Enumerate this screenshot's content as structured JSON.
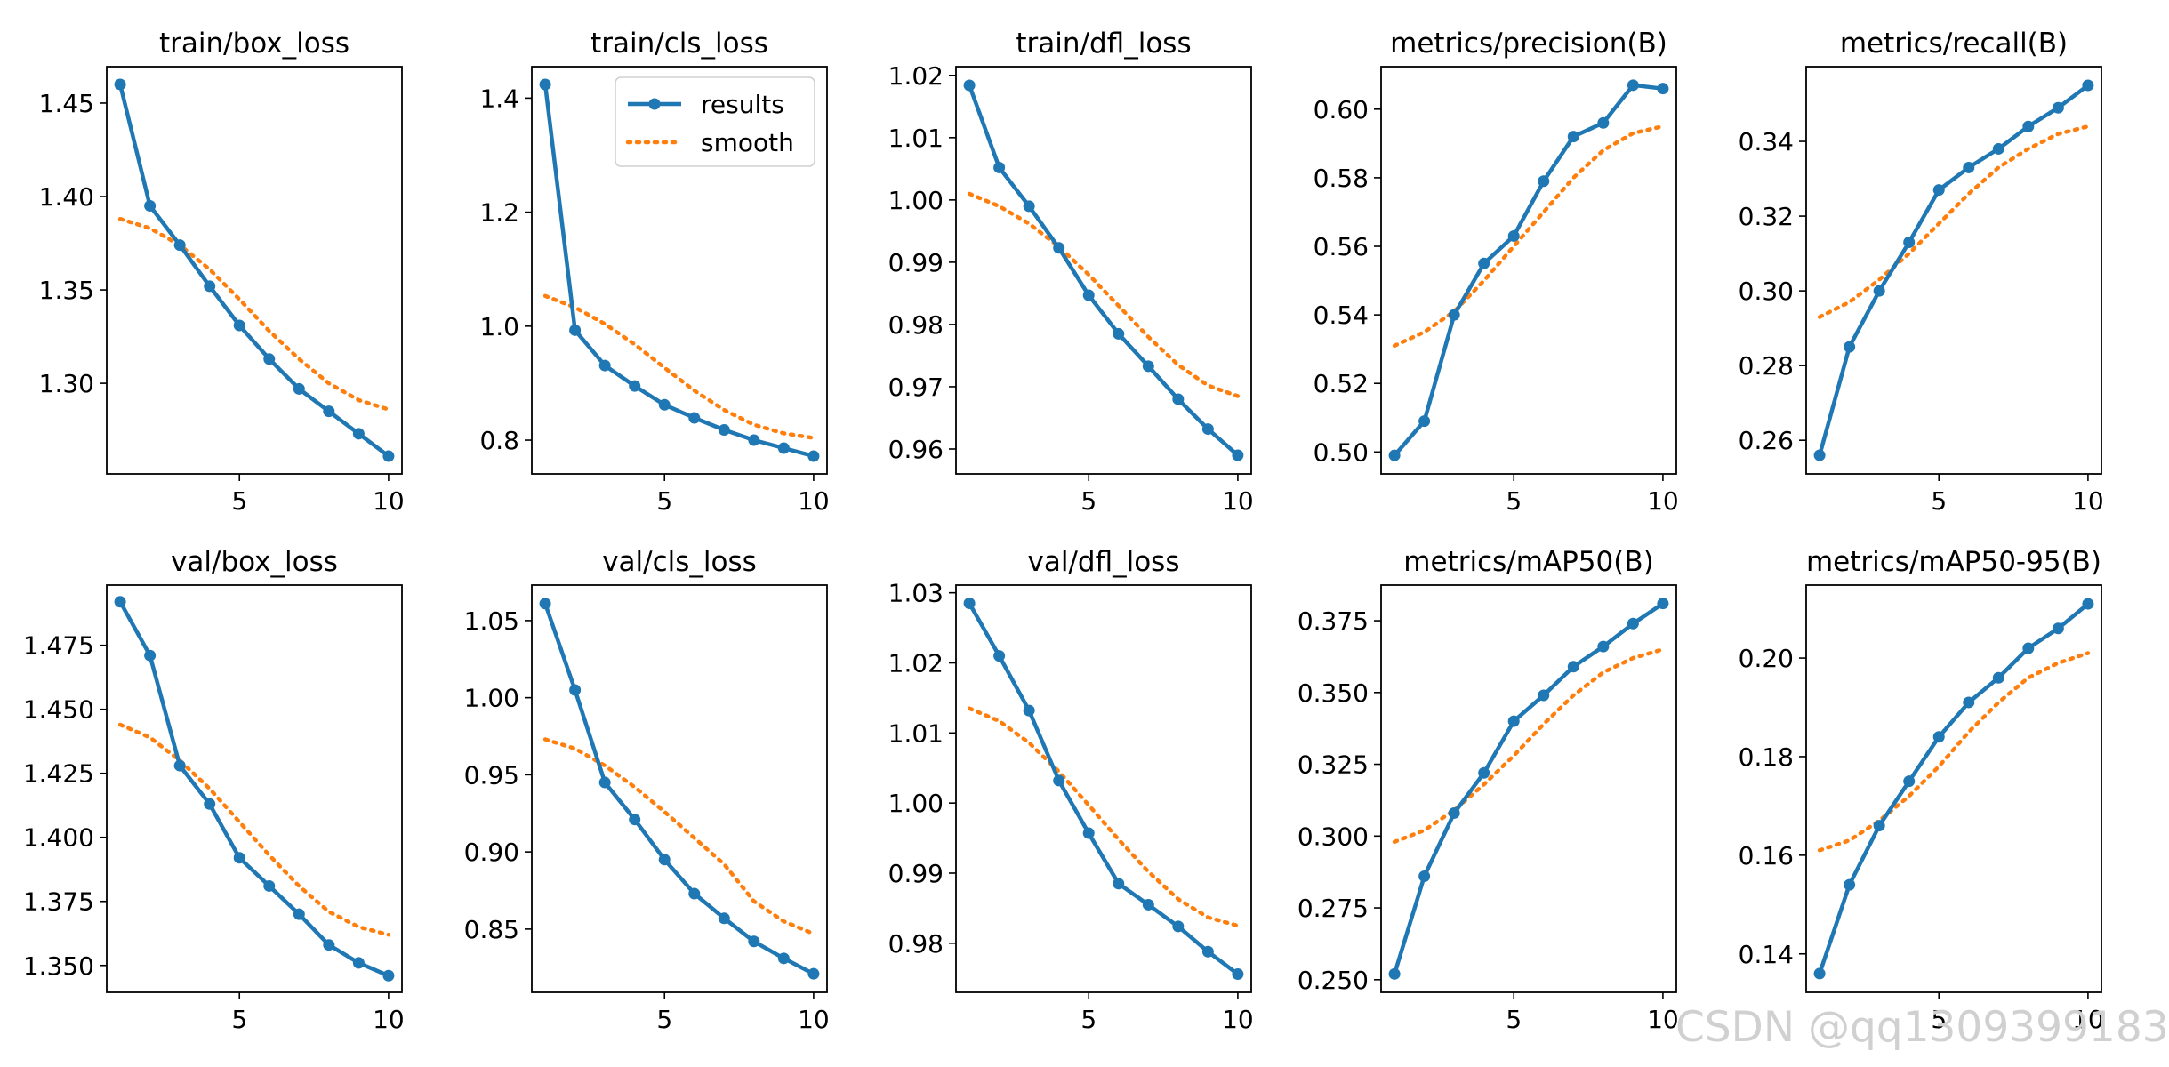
{
  "figure": {
    "legend": {
      "results_label": "results",
      "smooth_label": "smooth",
      "placement": "upper right of train/cls_loss panel"
    }
  },
  "colors": {
    "results": "#1f77b4",
    "smooth": "#ff7f0e",
    "watermark": "#d0d0d0"
  },
  "watermark": {
    "text": "CSDN @qq1309399183"
  },
  "chart_data": [
    {
      "type": "line",
      "title": "train/box_loss",
      "x": [
        1,
        2,
        3,
        4,
        5,
        6,
        7,
        8,
        9,
        10
      ],
      "series": [
        {
          "name": "results",
          "values": [
            1.46,
            1.395,
            1.374,
            1.352,
            1.331,
            1.313,
            1.297,
            1.285,
            1.273,
            1.261
          ]
        },
        {
          "name": "smooth",
          "values": [
            1.388,
            1.383,
            1.374,
            1.361,
            1.345,
            1.328,
            1.313,
            1.3,
            1.291,
            1.286
          ]
        }
      ],
      "xlim": [
        0.55,
        10.45
      ],
      "ylim": [
        1.2515,
        1.4695
      ],
      "xticks": [
        5,
        10
      ],
      "xtick_labels": [
        "5",
        "10"
      ],
      "yticks": [
        1.3,
        1.35,
        1.4,
        1.45
      ],
      "ytick_labels": [
        "1.30",
        "1.35",
        "1.40",
        "1.45"
      ]
    },
    {
      "type": "line",
      "title": "train/cls_loss",
      "x": [
        1,
        2,
        3,
        4,
        5,
        6,
        7,
        8,
        9,
        10
      ],
      "series": [
        {
          "name": "results",
          "values": [
            1.424,
            0.993,
            0.931,
            0.895,
            0.862,
            0.839,
            0.818,
            0.8,
            0.786,
            0.772
          ]
        },
        {
          "name": "smooth",
          "values": [
            1.053,
            1.033,
            1.004,
            0.968,
            0.927,
            0.887,
            0.853,
            0.827,
            0.812,
            0.804
          ]
        }
      ],
      "xlim": [
        0.55,
        10.45
      ],
      "ylim": [
        0.7408,
        1.4552
      ],
      "xticks": [
        5,
        10
      ],
      "xtick_labels": [
        "5",
        "10"
      ],
      "yticks": [
        0.8,
        1.0,
        1.2,
        1.4
      ],
      "ytick_labels": [
        "0.8",
        "1.0",
        "1.2",
        "1.4"
      ],
      "show_legend": true
    },
    {
      "type": "line",
      "title": "train/dfl_loss",
      "x": [
        1,
        2,
        3,
        4,
        5,
        6,
        7,
        8,
        9,
        10
      ],
      "series": [
        {
          "name": "results",
          "values": [
            1.0184,
            1.0052,
            0.999,
            0.9923,
            0.9847,
            0.9785,
            0.9733,
            0.968,
            0.9632,
            0.959
          ]
        },
        {
          "name": "smooth",
          "values": [
            1.001,
            0.999,
            0.9962,
            0.9925,
            0.988,
            0.983,
            0.978,
            0.9735,
            0.9702,
            0.9685
          ]
        }
      ],
      "xlim": [
        0.55,
        10.45
      ],
      "ylim": [
        0.956,
        1.0214
      ],
      "xticks": [
        5,
        10
      ],
      "xtick_labels": [
        "5",
        "10"
      ],
      "yticks": [
        0.96,
        0.97,
        0.98,
        0.99,
        1.0,
        1.01,
        1.02
      ],
      "ytick_labels": [
        "0.96",
        "0.97",
        "0.98",
        "0.99",
        "1.00",
        "1.01",
        "1.02"
      ]
    },
    {
      "type": "line",
      "title": "metrics/precision(B)",
      "x": [
        1,
        2,
        3,
        4,
        5,
        6,
        7,
        8,
        9,
        10
      ],
      "series": [
        {
          "name": "results",
          "values": [
            0.499,
            0.509,
            0.54,
            0.555,
            0.563,
            0.579,
            0.592,
            0.596,
            0.607,
            0.606
          ]
        },
        {
          "name": "smooth",
          "values": [
            0.531,
            0.535,
            0.541,
            0.55,
            0.56,
            0.57,
            0.58,
            0.588,
            0.593,
            0.595
          ]
        }
      ],
      "xlim": [
        0.55,
        10.45
      ],
      "ylim": [
        0.4936,
        0.6124
      ],
      "xticks": [
        5,
        10
      ],
      "xtick_labels": [
        "5",
        "10"
      ],
      "yticks": [
        0.5,
        0.52,
        0.54,
        0.56,
        0.58,
        0.6
      ],
      "ytick_labels": [
        "0.50",
        "0.52",
        "0.54",
        "0.56",
        "0.58",
        "0.60"
      ]
    },
    {
      "type": "line",
      "title": "metrics/recall(B)",
      "x": [
        1,
        2,
        3,
        4,
        5,
        6,
        7,
        8,
        9,
        10
      ],
      "series": [
        {
          "name": "results",
          "values": [
            0.256,
            0.285,
            0.3,
            0.313,
            0.327,
            0.333,
            0.338,
            0.344,
            0.349,
            0.355
          ]
        },
        {
          "name": "smooth",
          "values": [
            0.293,
            0.297,
            0.303,
            0.31,
            0.318,
            0.326,
            0.333,
            0.338,
            0.342,
            0.344
          ]
        }
      ],
      "xlim": [
        0.55,
        10.45
      ],
      "ylim": [
        0.251,
        0.36
      ],
      "xticks": [
        5,
        10
      ],
      "xtick_labels": [
        "5",
        "10"
      ],
      "yticks": [
        0.26,
        0.28,
        0.3,
        0.32,
        0.34
      ],
      "ytick_labels": [
        "0.26",
        "0.28",
        "0.30",
        "0.32",
        "0.34"
      ]
    },
    {
      "type": "line",
      "title": "val/box_loss",
      "x": [
        1,
        2,
        3,
        4,
        5,
        6,
        7,
        8,
        9,
        10
      ],
      "series": [
        {
          "name": "results",
          "values": [
            1.492,
            1.471,
            1.428,
            1.413,
            1.392,
            1.381,
            1.37,
            1.358,
            1.351,
            1.346
          ]
        },
        {
          "name": "smooth",
          "values": [
            1.444,
            1.439,
            1.43,
            1.419,
            1.406,
            1.393,
            1.381,
            1.371,
            1.365,
            1.362
          ]
        }
      ],
      "xlim": [
        0.55,
        10.45
      ],
      "ylim": [
        1.3395,
        1.4985
      ],
      "xticks": [
        5,
        10
      ],
      "xtick_labels": [
        "5",
        "10"
      ],
      "yticks": [
        1.35,
        1.375,
        1.4,
        1.425,
        1.45,
        1.475
      ],
      "ytick_labels": [
        "1.350",
        "1.375",
        "1.400",
        "1.425",
        "1.450",
        "1.475"
      ]
    },
    {
      "type": "line",
      "title": "val/cls_loss",
      "x": [
        1,
        2,
        3,
        4,
        5,
        6,
        7,
        8,
        9,
        10
      ],
      "series": [
        {
          "name": "results",
          "values": [
            1.061,
            1.005,
            0.945,
            0.921,
            0.895,
            0.873,
            0.857,
            0.842,
            0.831,
            0.821
          ]
        },
        {
          "name": "smooth",
          "values": [
            0.973,
            0.967,
            0.956,
            0.942,
            0.926,
            0.909,
            0.892,
            0.868,
            0.855,
            0.847
          ]
        }
      ],
      "xlim": [
        0.55,
        10.45
      ],
      "ylim": [
        0.809,
        1.073
      ],
      "xticks": [
        5,
        10
      ],
      "xtick_labels": [
        "5",
        "10"
      ],
      "yticks": [
        0.85,
        0.9,
        0.95,
        1.0,
        1.05
      ],
      "ytick_labels": [
        "0.85",
        "0.90",
        "0.95",
        "1.00",
        "1.05"
      ]
    },
    {
      "type": "line",
      "title": "val/dfl_loss",
      "x": [
        1,
        2,
        3,
        4,
        5,
        6,
        7,
        8,
        9,
        10
      ],
      "series": [
        {
          "name": "results",
          "values": [
            1.0285,
            1.021,
            1.0132,
            1.0032,
            0.9957,
            0.9885,
            0.9855,
            0.9824,
            0.9788,
            0.9756
          ]
        },
        {
          "name": "smooth",
          "values": [
            1.0135,
            1.0117,
            1.0086,
            1.0045,
            0.9997,
            0.9948,
            0.9902,
            0.9863,
            0.9837,
            0.9825
          ]
        }
      ],
      "xlim": [
        0.55,
        10.45
      ],
      "ylim": [
        0.973,
        1.0311
      ],
      "xticks": [
        5,
        10
      ],
      "xtick_labels": [
        "5",
        "10"
      ],
      "yticks": [
        0.98,
        0.99,
        1.0,
        1.01,
        1.02,
        1.03
      ],
      "ytick_labels": [
        "0.98",
        "0.99",
        "1.00",
        "1.01",
        "1.02",
        "1.03"
      ]
    },
    {
      "type": "line",
      "title": "metrics/mAP50(B)",
      "x": [
        1,
        2,
        3,
        4,
        5,
        6,
        7,
        8,
        9,
        10
      ],
      "series": [
        {
          "name": "results",
          "values": [
            0.252,
            0.286,
            0.308,
            0.322,
            0.34,
            0.349,
            0.359,
            0.366,
            0.374,
            0.381
          ]
        },
        {
          "name": "smooth",
          "values": [
            0.298,
            0.302,
            0.309,
            0.318,
            0.328,
            0.339,
            0.349,
            0.357,
            0.362,
            0.365
          ]
        }
      ],
      "xlim": [
        0.55,
        10.45
      ],
      "ylim": [
        0.2456,
        0.3874
      ],
      "xticks": [
        5,
        10
      ],
      "xtick_labels": [
        "5",
        "10"
      ],
      "yticks": [
        0.25,
        0.275,
        0.3,
        0.325,
        0.35,
        0.375
      ],
      "ytick_labels": [
        "0.250",
        "0.275",
        "0.300",
        "0.325",
        "0.350",
        "0.375"
      ]
    },
    {
      "type": "line",
      "title": "metrics/mAP50-95(B)",
      "x": [
        1,
        2,
        3,
        4,
        5,
        6,
        7,
        8,
        9,
        10
      ],
      "series": [
        {
          "name": "results",
          "values": [
            0.136,
            0.154,
            0.166,
            0.175,
            0.184,
            0.191,
            0.196,
            0.202,
            0.206,
            0.211
          ]
        },
        {
          "name": "smooth",
          "values": [
            0.161,
            0.163,
            0.167,
            0.172,
            0.178,
            0.185,
            0.191,
            0.196,
            0.199,
            0.201
          ]
        }
      ],
      "xlim": [
        0.55,
        10.45
      ],
      "ylim": [
        0.1322,
        0.2148
      ],
      "xticks": [
        5,
        10
      ],
      "xtick_labels": [
        "5",
        "10"
      ],
      "yticks": [
        0.14,
        0.16,
        0.18,
        0.2
      ],
      "ytick_labels": [
        "0.14",
        "0.16",
        "0.18",
        "0.20"
      ]
    }
  ]
}
